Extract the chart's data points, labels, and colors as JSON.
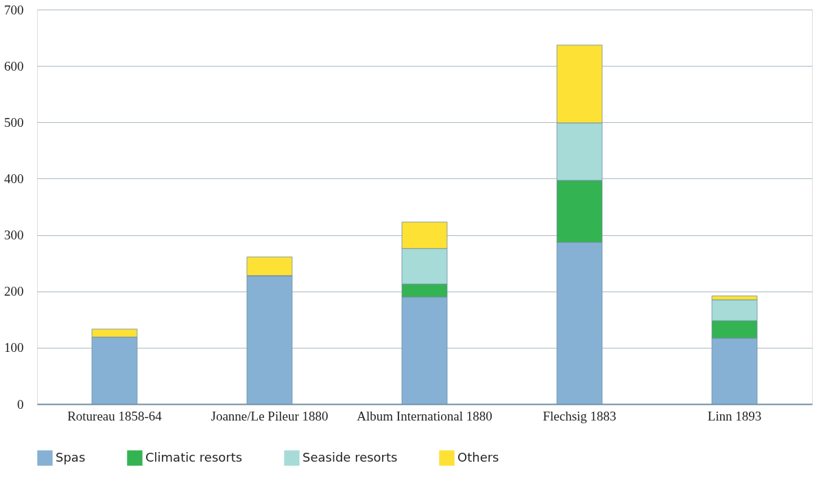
{
  "chart_data": {
    "type": "bar",
    "stacked": true,
    "categories": [
      "Rotureau 1858-64",
      "Joanne/Le Pileur 1880",
      "Album International 1880",
      "Flechsig 1883",
      "Linn 1893"
    ],
    "series": [
      {
        "name": "Spas",
        "color": "#86b1d4",
        "values": [
          119,
          228,
          190,
          287,
          117
        ]
      },
      {
        "name": "Climatic resorts",
        "color": "#34b352",
        "values": [
          0,
          0,
          23,
          110,
          31
        ]
      },
      {
        "name": "Seaside resorts",
        "color": "#a6dbd8",
        "values": [
          0,
          0,
          63,
          102,
          37
        ]
      },
      {
        "name": "Others",
        "color": "#fde135",
        "values": [
          14,
          33,
          47,
          138,
          7
        ]
      }
    ],
    "ylim": [
      0,
      700
    ],
    "yticks": [
      0,
      100,
      200,
      300,
      400,
      500,
      600,
      700
    ],
    "grid": "y",
    "legend": "bottom left"
  }
}
